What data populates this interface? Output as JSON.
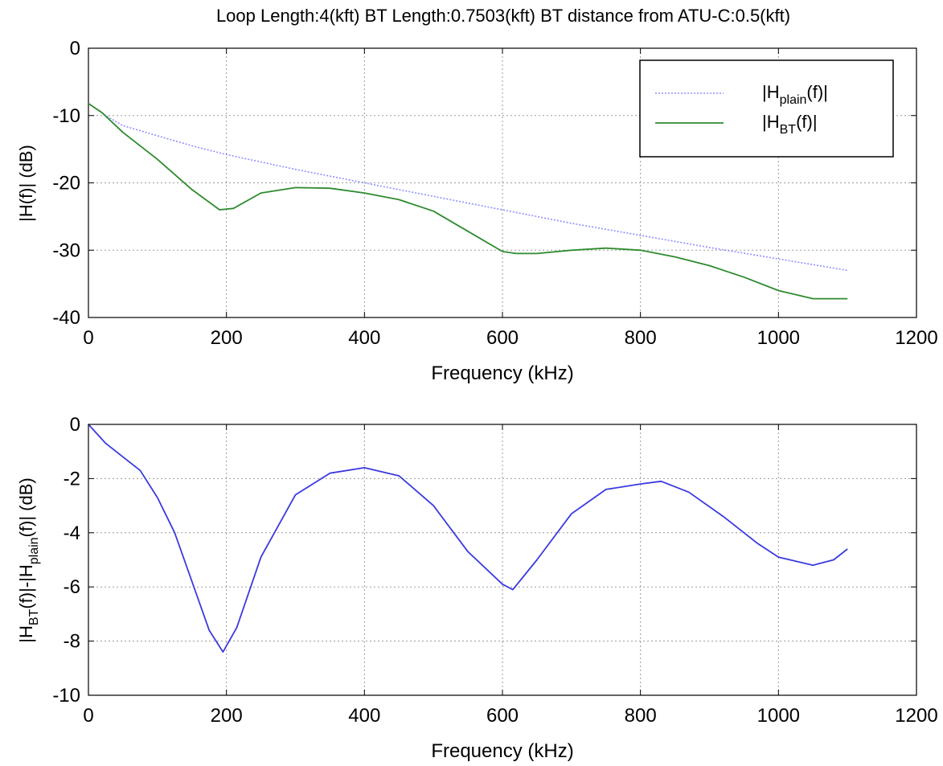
{
  "figure_title": "Loop Length:4(kft)  BT Length:0.7503(kft)  BT distance from ATU-C:0.5(kft)",
  "colors": {
    "plain": "#8f8fff",
    "bt": "#2e8b2e",
    "diff": "#3a3ae0",
    "grid": "#9a9a9a",
    "axes": "#000000"
  },
  "chart_data": [
    {
      "type": "line",
      "title": "Loop Length:4(kft)  BT Length:0.7503(kft)  BT distance from ATU-C:0.5(kft)",
      "xlabel": "Frequency (kHz)",
      "ylabel": "|H(f)|  (dB)",
      "xlim": [
        0,
        1200
      ],
      "ylim": [
        -40,
        0
      ],
      "xticks": [
        0,
        200,
        400,
        600,
        800,
        1000,
        1200
      ],
      "yticks": [
        0,
        -10,
        -20,
        -30,
        -40
      ],
      "grid": true,
      "legend_position": "top-right",
      "series": [
        {
          "name": "|H_plain(f)|",
          "legend_base": "|H",
          "legend_sub": "plain",
          "legend_tail": "(f)|",
          "color_key": "plain",
          "style": "dotted",
          "x": [
            0,
            25,
            50,
            100,
            150,
            200,
            300,
            400,
            500,
            600,
            700,
            800,
            900,
            1000,
            1100
          ],
          "y": [
            -8.2,
            -10.0,
            -11.5,
            -13.0,
            -14.5,
            -15.8,
            -18.0,
            -20.0,
            -22.0,
            -24.0,
            -26.0,
            -27.8,
            -29.6,
            -31.3,
            -33.0
          ]
        },
        {
          "name": "|H_BT(f)|",
          "legend_base": "|H",
          "legend_sub": "BT",
          "legend_tail": "(f)|",
          "color_key": "bt",
          "style": "solid",
          "x": [
            0,
            20,
            50,
            100,
            150,
            190,
            210,
            250,
            300,
            350,
            400,
            450,
            500,
            550,
            600,
            620,
            650,
            700,
            750,
            800,
            850,
            900,
            950,
            1000,
            1050,
            1100
          ],
          "y": [
            -8.2,
            -9.6,
            -12.5,
            -16.5,
            -21.0,
            -24.0,
            -23.8,
            -21.5,
            -20.7,
            -20.8,
            -21.5,
            -22.5,
            -24.2,
            -27.2,
            -30.2,
            -30.5,
            -30.5,
            -30.0,
            -29.7,
            -30.0,
            -31.0,
            -32.3,
            -34.0,
            -36.0,
            -37.2,
            -37.2
          ]
        }
      ]
    },
    {
      "type": "line",
      "xlabel": "Frequency (kHz)",
      "ylabel": "|H_BT(f)|-|H_plain(f)| (dB)",
      "ylabel_parts": [
        "|H",
        "BT",
        "(f)|-|H",
        "plain",
        "(f)| (dB)"
      ],
      "xlim": [
        0,
        1200
      ],
      "ylim": [
        -10,
        0
      ],
      "xticks": [
        0,
        200,
        400,
        600,
        800,
        1000,
        1200
      ],
      "yticks": [
        0,
        -2,
        -4,
        -6,
        -8,
        -10
      ],
      "grid": true,
      "series": [
        {
          "color_key": "diff",
          "style": "solid",
          "x": [
            0,
            25,
            50,
            75,
            100,
            125,
            150,
            175,
            195,
            215,
            250,
            300,
            350,
            400,
            450,
            500,
            550,
            600,
            615,
            650,
            700,
            750,
            800,
            830,
            870,
            920,
            970,
            1000,
            1050,
            1080,
            1100
          ],
          "y": [
            0,
            -0.7,
            -1.2,
            -1.7,
            -2.7,
            -4.0,
            -5.8,
            -7.6,
            -8.4,
            -7.5,
            -4.9,
            -2.6,
            -1.8,
            -1.6,
            -1.9,
            -3.0,
            -4.7,
            -5.9,
            -6.1,
            -5.0,
            -3.3,
            -2.4,
            -2.2,
            -2.1,
            -2.5,
            -3.4,
            -4.4,
            -4.9,
            -5.2,
            -5.0,
            -4.6
          ]
        }
      ]
    }
  ]
}
